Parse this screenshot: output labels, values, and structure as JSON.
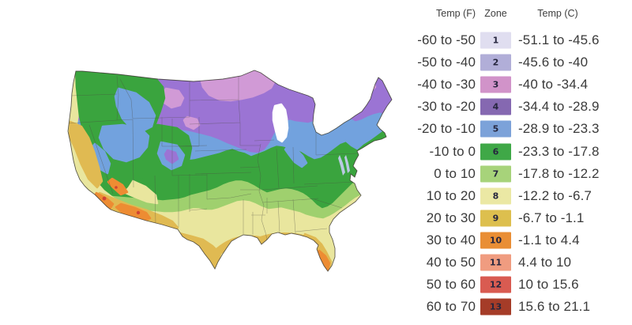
{
  "legend": {
    "headers": {
      "f": "Temp (F)",
      "zone": "Zone",
      "c": "Temp (C)"
    },
    "rows": [
      {
        "zone": "1",
        "f": "-60 to -50",
        "c": "-51.1 to -45.6",
        "color": "#e0def0"
      },
      {
        "zone": "2",
        "f": "-50 to -40",
        "c": "-45.6 to -40",
        "color": "#b1aed8"
      },
      {
        "zone": "3",
        "f": "-40 to -30",
        "c": "-40 to -34.4",
        "color": "#d193c9"
      },
      {
        "zone": "4",
        "f": "-30 to -20",
        "c": "-34.4 to -28.9",
        "color": "#8568b1"
      },
      {
        "zone": "5",
        "f": "-20 to -10",
        "c": "-28.9 to -23.3",
        "color": "#7ca2d9"
      },
      {
        "zone": "6",
        "f": "-10 to 0",
        "c": "-23.3 to -17.8",
        "color": "#3fa847"
      },
      {
        "zone": "7",
        "f": "0 to 10",
        "c": "-17.8 to -12.2",
        "color": "#a7d37a"
      },
      {
        "zone": "8",
        "f": "10 to 20",
        "c": "-12.2 to -6.7",
        "color": "#ebe8a4"
      },
      {
        "zone": "9",
        "f": "20 to 30",
        "c": "-6.7 to -1.1",
        "color": "#ddbf4e"
      },
      {
        "zone": "10",
        "f": "30 to 40",
        "c": "-1.1 to 4.4",
        "color": "#e98e35"
      },
      {
        "zone": "11",
        "f": "40 to 50",
        "c": "4.4 to 10",
        "color": "#f09c80"
      },
      {
        "zone": "12",
        "f": "50 to 60",
        "c": "10 to 15.6",
        "color": "#d95b51"
      },
      {
        "zone": "13",
        "f": "60 to 70",
        "c": "15.6 to 21.1",
        "color": "#a53c28"
      }
    ]
  },
  "map": {
    "zone_colors": {
      "z3": "#d19ad6",
      "z4": "#9b74d4",
      "z5": "#72a2de",
      "z6": "#3aa43e",
      "z7": "#9fd06e",
      "z8": "#e9e69e",
      "z9": "#e0ba52",
      "z10": "#ed8c33",
      "hot": "#cf4333",
      "water": "#ffffff",
      "bay": "#b9c9e2",
      "state_line": "#4c4a42",
      "border": "#3a362e"
    }
  }
}
